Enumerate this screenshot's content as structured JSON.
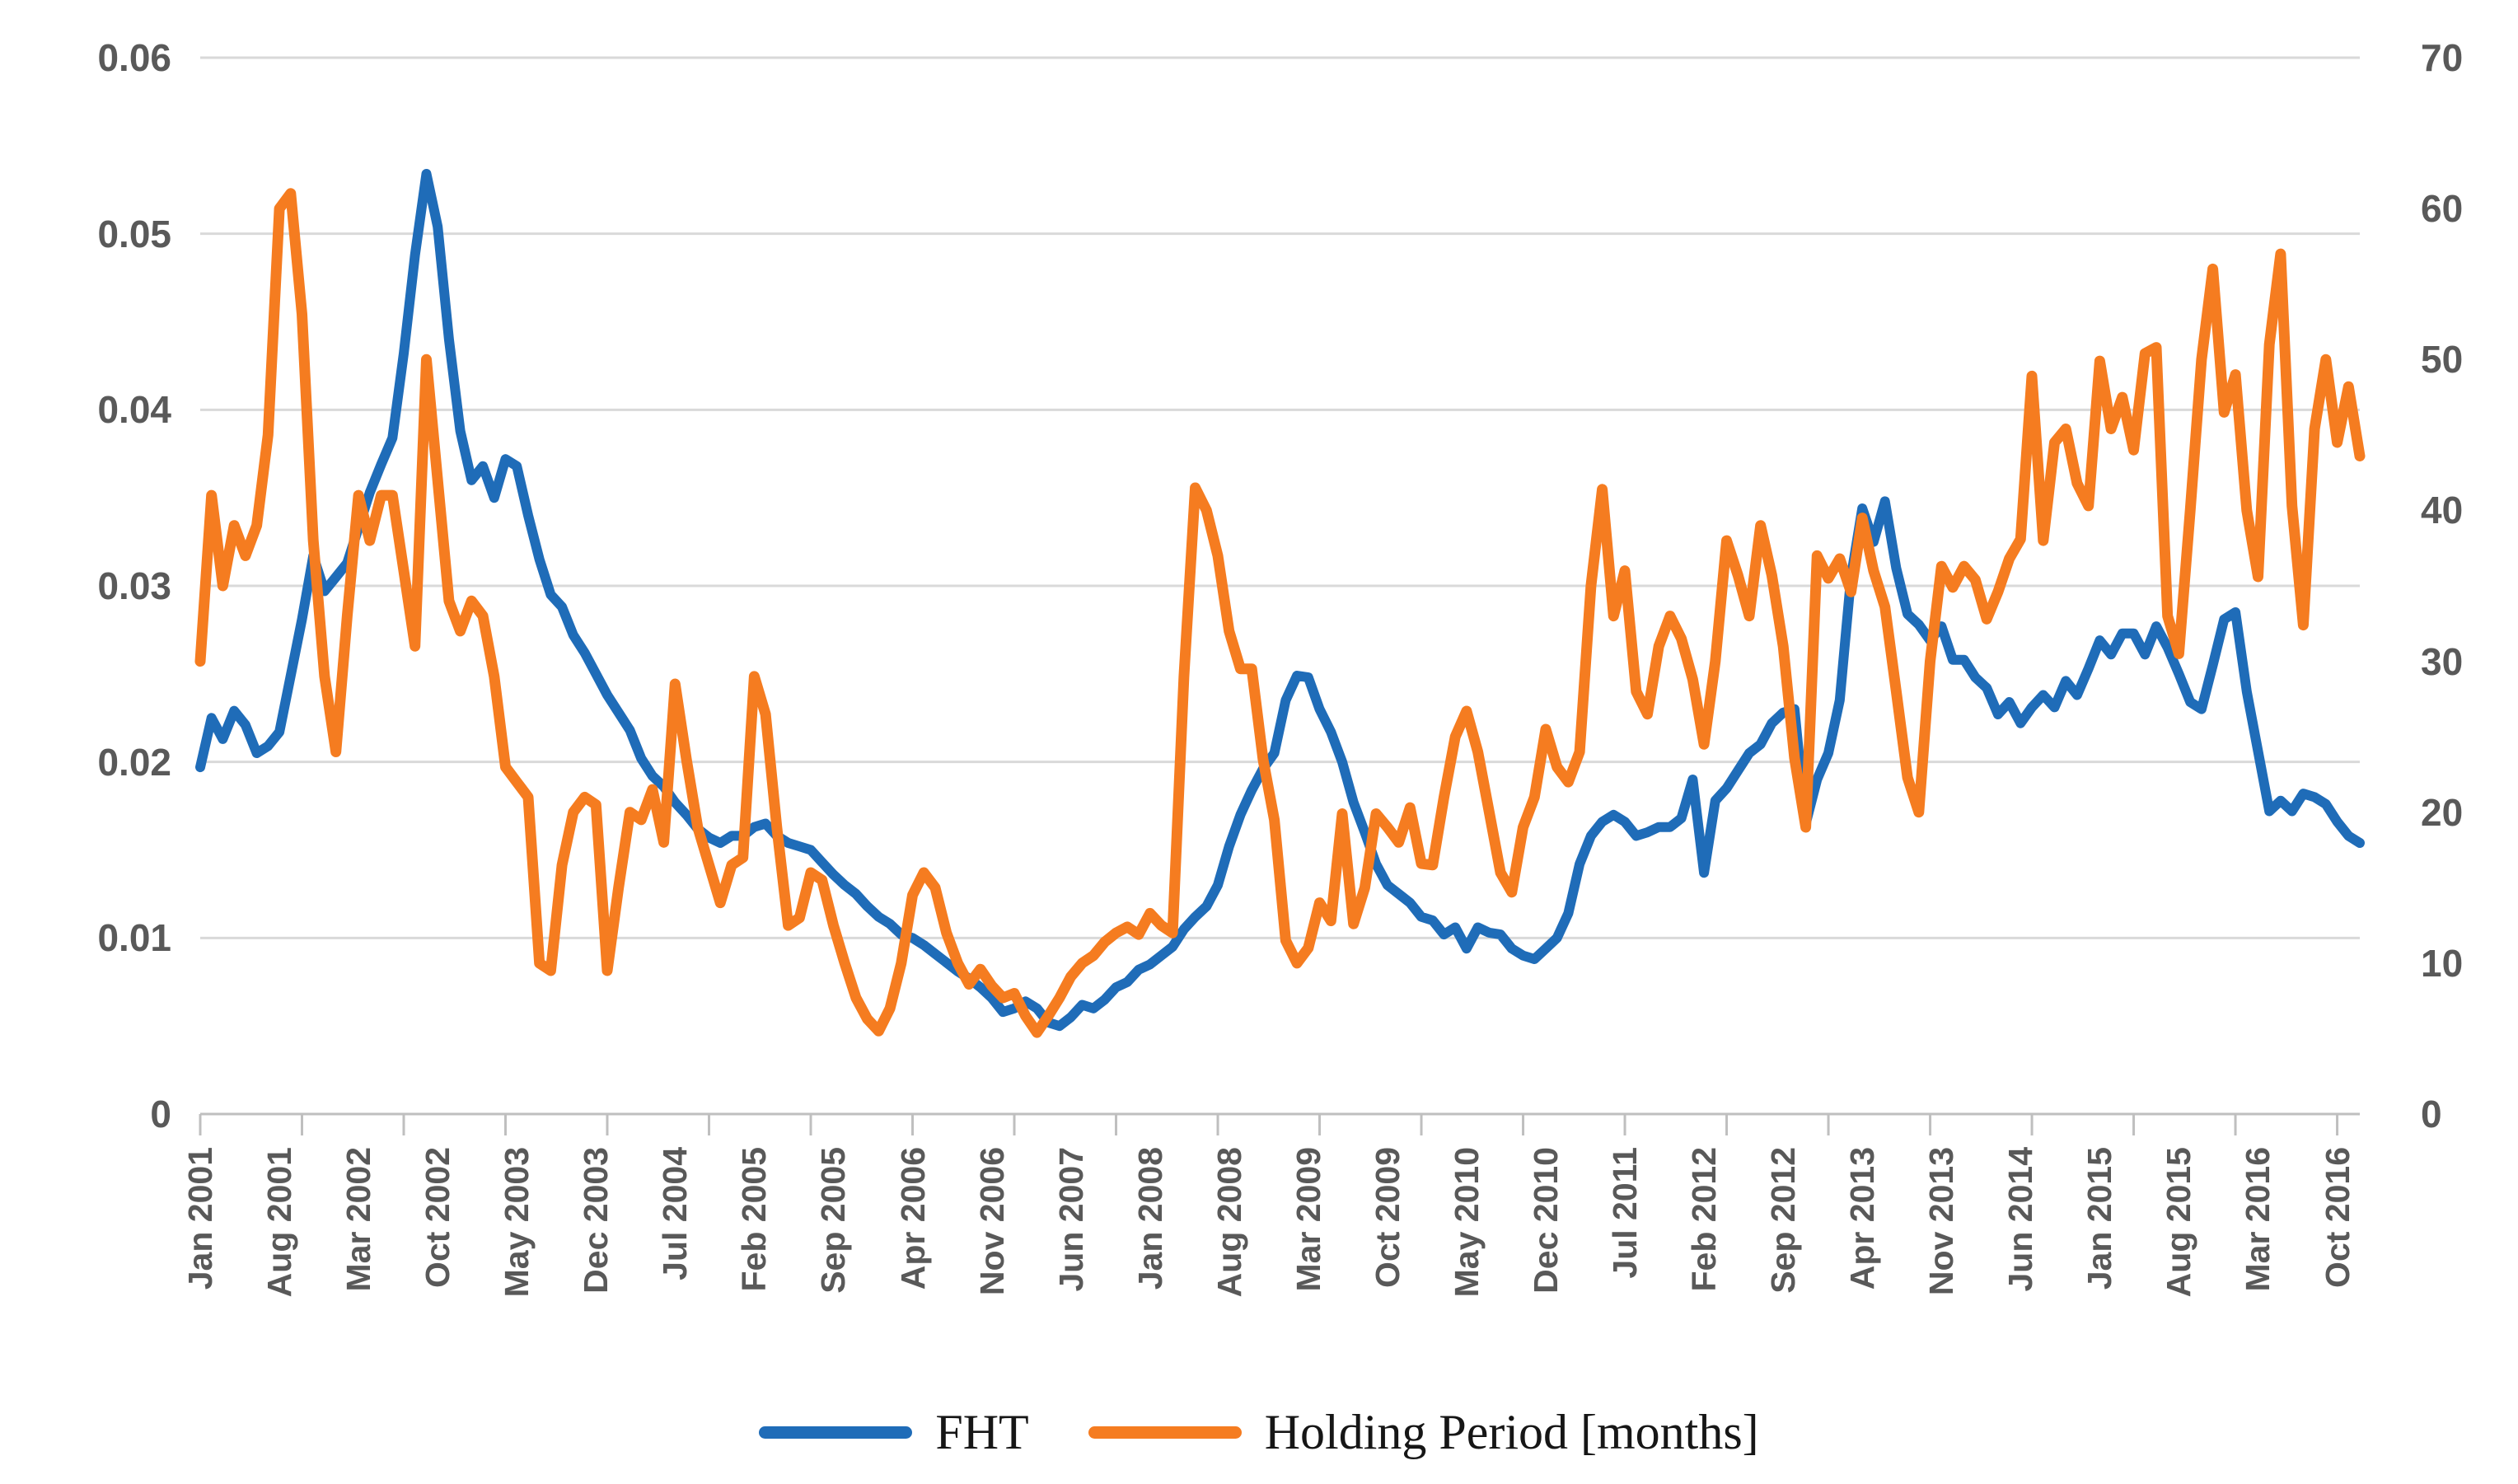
{
  "chart_data": {
    "type": "line",
    "title": "",
    "grid": true,
    "legend_position": "bottom",
    "x_months_total": 192,
    "x_start": "Jan 2001",
    "x_end": "Dec 2016",
    "label_interval_months": 7,
    "tick_interval_months": 9,
    "x_tick_labels": [
      "Jan 2001",
      "Aug 2001",
      "Mar 2002",
      "Oct 2002",
      "May 2003",
      "Dec 2003",
      "Jul 2004",
      "Feb 2005",
      "Sep 2005",
      "Apr 2006",
      "Nov 2006",
      "Jun 2007",
      "Jan 2008",
      "Aug 2008",
      "Mar 2009",
      "Oct 2009",
      "May 2010",
      "Dec 2010",
      "Jul 2011",
      "Feb 2012",
      "Sep 2012",
      "Apr 2013",
      "Nov 2013",
      "Jun 2014",
      "Jan 2015",
      "Aug 2015",
      "Mar 2016",
      "Oct 2016"
    ],
    "left_axis": {
      "min": 0,
      "max": 0.06,
      "tick_labels": [
        "0.06",
        "0.05",
        "0.04",
        "0.03",
        "0.02",
        "0.01",
        "0"
      ]
    },
    "right_axis": {
      "min": 0,
      "max": 70,
      "tick_labels": [
        "70",
        "60",
        "50",
        "40",
        "30",
        "20",
        "10",
        "0"
      ]
    },
    "series": [
      {
        "name": "FHT",
        "axis": "left",
        "color": "#1f6cb8",
        "stroke_width": 12,
        "values": [
          0.0197,
          0.0225,
          0.0213,
          0.0229,
          0.0221,
          0.0205,
          0.0209,
          0.0217,
          0.0249,
          0.0281,
          0.0317,
          0.0297,
          0.0305,
          0.0313,
          0.0333,
          0.0353,
          0.0369,
          0.0384,
          0.0432,
          0.0488,
          0.0534,
          0.0504,
          0.044,
          0.0388,
          0.036,
          0.0368,
          0.035,
          0.0372,
          0.0368,
          0.034,
          0.0315,
          0.0295,
          0.0288,
          0.0272,
          0.0262,
          0.025,
          0.0238,
          0.0228,
          0.0218,
          0.0202,
          0.0192,
          0.0186,
          0.0177,
          0.017,
          0.0162,
          0.0157,
          0.0154,
          0.0158,
          0.0158,
          0.0163,
          0.0165,
          0.0158,
          0.0154,
          0.0152,
          0.015,
          0.0143,
          0.0136,
          0.013,
          0.0125,
          0.0118,
          0.0112,
          0.0108,
          0.0102,
          0.01,
          0.0096,
          0.0091,
          0.0086,
          0.0081,
          0.0077,
          0.0072,
          0.0066,
          0.0058,
          0.006,
          0.0064,
          0.006,
          0.0052,
          0.005,
          0.0055,
          0.0062,
          0.006,
          0.0065,
          0.0072,
          0.0075,
          0.0082,
          0.0085,
          0.009,
          0.0095,
          0.0105,
          0.0112,
          0.0118,
          0.013,
          0.0152,
          0.017,
          0.0184,
          0.0196,
          0.0205,
          0.0235,
          0.0249,
          0.0248,
          0.023,
          0.0217,
          0.02,
          0.0177,
          0.016,
          0.0142,
          0.013,
          0.0125,
          0.012,
          0.0112,
          0.011,
          0.0102,
          0.0106,
          0.0094,
          0.0106,
          0.0103,
          0.0102,
          0.0094,
          0.009,
          0.0088,
          0.0094,
          0.01,
          0.0114,
          0.0142,
          0.0158,
          0.0166,
          0.017,
          0.0166,
          0.0158,
          0.016,
          0.0163,
          0.0163,
          0.0168,
          0.019,
          0.0137,
          0.0178,
          0.0185,
          0.0195,
          0.0205,
          0.021,
          0.0222,
          0.0228,
          0.023,
          0.0165,
          0.019,
          0.0205,
          0.0235,
          0.0305,
          0.0344,
          0.0325,
          0.0348,
          0.031,
          0.0284,
          0.0278,
          0.0269,
          0.0277,
          0.0258,
          0.0258,
          0.0248,
          0.0242,
          0.0227,
          0.0234,
          0.0222,
          0.0231,
          0.0238,
          0.0231,
          0.0246,
          0.0238,
          0.0253,
          0.0269,
          0.0261,
          0.0273,
          0.0273,
          0.0261,
          0.0277,
          0.0265,
          0.025,
          0.0234,
          0.023,
          0.0255,
          0.0281,
          0.0285,
          0.024,
          0.0206,
          0.0172,
          0.0178,
          0.0172,
          0.0182,
          0.018,
          0.0176,
          0.0166,
          0.0158,
          0.0154
        ]
      },
      {
        "name": "Holding Period [months]",
        "axis": "right",
        "color": "#f57c20",
        "stroke_width": 13,
        "values": [
          30,
          41,
          35,
          39,
          37,
          39,
          45,
          60,
          61,
          53,
          38,
          29,
          24,
          33,
          41,
          38,
          41,
          41,
          36,
          31,
          50,
          42,
          34,
          32,
          34,
          33,
          29,
          23,
          22,
          21,
          10,
          9.5,
          16.5,
          20,
          21,
          20.5,
          9.5,
          15,
          20,
          19.5,
          21.5,
          18,
          28.5,
          23.5,
          19,
          16.5,
          14,
          16.5,
          17,
          29,
          26.5,
          19,
          12.5,
          13,
          16,
          15.5,
          12.5,
          10,
          7.7,
          6.3,
          5.5,
          7,
          10,
          14.5,
          16,
          15,
          12,
          10,
          8.6,
          9.6,
          8.5,
          7.7,
          8,
          6.5,
          5.4,
          6.5,
          7.7,
          9.1,
          10,
          10.5,
          11.4,
          12,
          12.4,
          11.9,
          13.3,
          12.5,
          12,
          29,
          41.5,
          40,
          37,
          32,
          29.5,
          29.5,
          23.5,
          19.5,
          11.5,
          10,
          11,
          14,
          12.8,
          19.9,
          12.6,
          15,
          19.9,
          19,
          18,
          20.3,
          16.6,
          16.5,
          21,
          25,
          26.7,
          24,
          20,
          16,
          14.7,
          19,
          21,
          25.5,
          23,
          22,
          24,
          35,
          41.4,
          33,
          36,
          28,
          26.5,
          31,
          33,
          31.5,
          28.8,
          24.5,
          30,
          38,
          35.7,
          33,
          39,
          35.7,
          31,
          23.6,
          19,
          37,
          35.5,
          36.8,
          34.6,
          39.5,
          36,
          33.6,
          28,
          22.3,
          20,
          30,
          36.3,
          34.9,
          36.3,
          35.4,
          32.8,
          34.6,
          36.8,
          38.1,
          48.9,
          38,
          44.5,
          45.4,
          41.8,
          40.3,
          49.9,
          45.4,
          47.5,
          44,
          50.4,
          50.8,
          33,
          30.5,
          40,
          50,
          56,
          46.5,
          49,
          40,
          35.6,
          51,
          57,
          40.3,
          32.4,
          45.4,
          50,
          44.5,
          48.2,
          43.6
        ]
      }
    ],
    "style": {
      "gridline_color": "#d9d9d9",
      "axis_line_color": "#bfbfbf",
      "axis_label_color": "#595959",
      "background": "#ffffff"
    }
  },
  "legend": {
    "items": [
      {
        "label": "FHT",
        "color": "#1f6cb8"
      },
      {
        "label": "Holding Period [months]",
        "color": "#f57c20"
      }
    ]
  }
}
